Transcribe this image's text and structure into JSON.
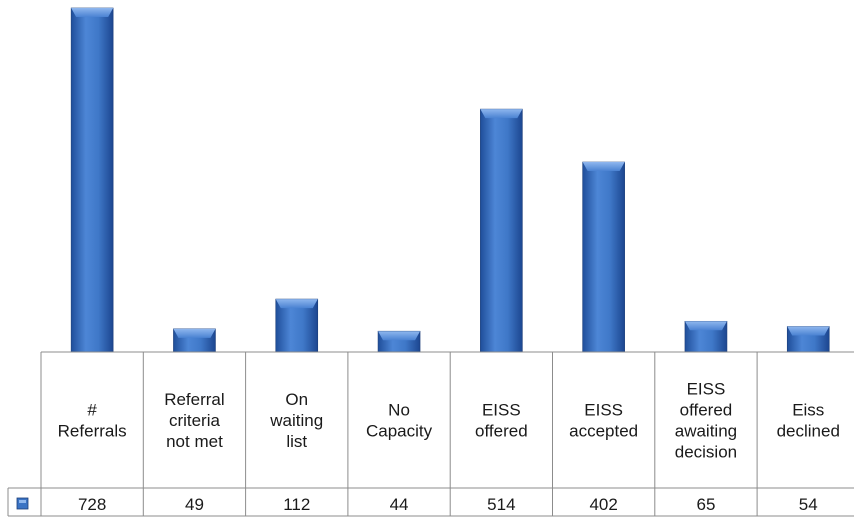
{
  "chart_data": {
    "type": "bar",
    "title": "",
    "xlabel": "",
    "ylabel": "",
    "ylim": [
      0,
      728
    ],
    "categories": [
      [
        "#",
        "Referrals"
      ],
      [
        "Referral",
        "criteria",
        "not met"
      ],
      [
        "On",
        "waiting",
        "list"
      ],
      [
        "No",
        "Capacity"
      ],
      [
        "EISS",
        "offered"
      ],
      [
        "EISS",
        "accepted"
      ],
      [
        "EISS",
        "offered",
        "awaiting",
        "decision"
      ],
      [
        "Eiss",
        "declined"
      ]
    ],
    "values": [
      728,
      49,
      112,
      44,
      514,
      402,
      65,
      54
    ],
    "value_labels": [
      "728",
      "49",
      "112",
      "44",
      "514",
      "402",
      "65",
      "54"
    ],
    "series_color": "#3a73c4",
    "grid": false,
    "legend": "data-table-left"
  }
}
